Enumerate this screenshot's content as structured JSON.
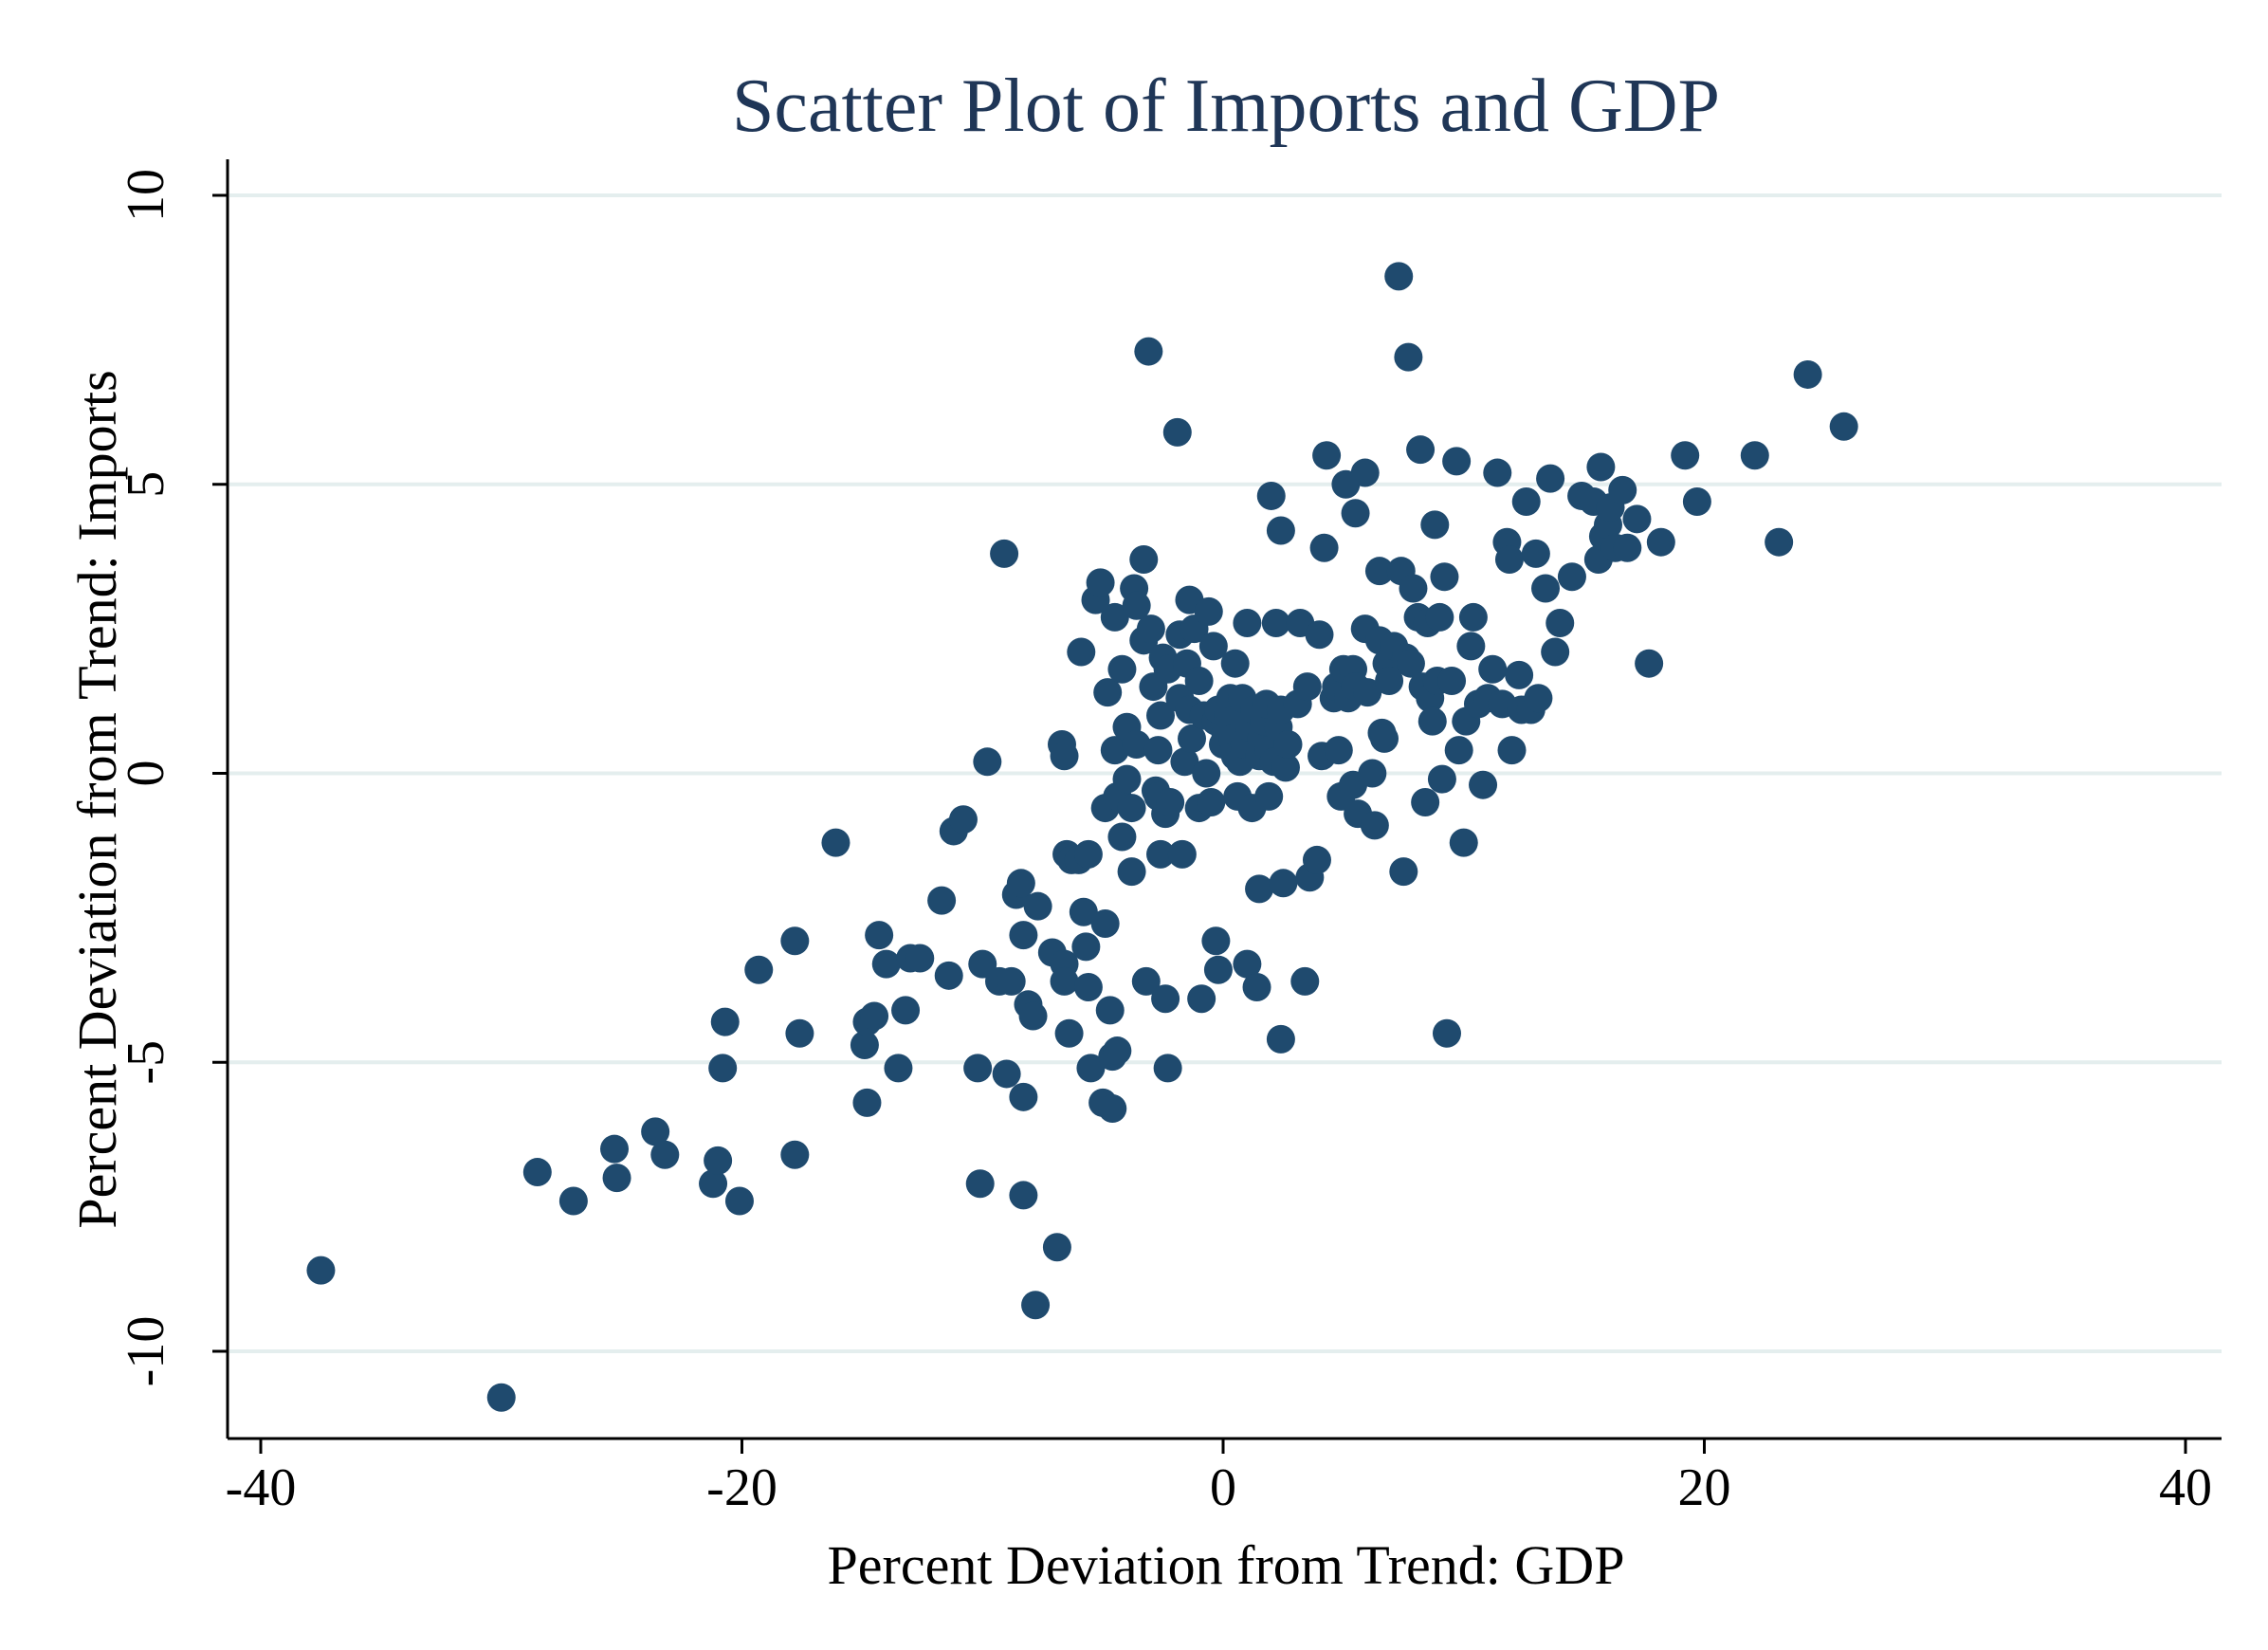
{
  "chart_data": {
    "type": "scatter",
    "title": "Scatter Plot of Imports and GDP",
    "xlabel": "Percent Deviation from Trend: GDP",
    "ylabel": "Percent Deviation from Trend: Imports",
    "xlim": [
      -40,
      40
    ],
    "ylim": [
      -10,
      10
    ],
    "x_ticks": [
      "-40",
      "-20",
      "0",
      "20",
      "40"
    ],
    "y_ticks": [
      "-10",
      "-5",
      "0",
      "5",
      "10"
    ],
    "grid": "horizontal",
    "legend": "none",
    "colors": {
      "marker": "#1f4a6e",
      "title": "#1f3657",
      "grid": "#e4eeee"
    },
    "points": [
      [
        -37.5,
        -8.6
      ],
      [
        -30.0,
        -10.8
      ],
      [
        -28.5,
        -6.9
      ],
      [
        -27.0,
        -7.4
      ],
      [
        -25.3,
        -6.5
      ],
      [
        -25.2,
        -7.0
      ],
      [
        -23.6,
        -6.2
      ],
      [
        -23.2,
        -6.6
      ],
      [
        -21.2,
        -7.1
      ],
      [
        -21.0,
        -6.7
      ],
      [
        -20.1,
        -7.4
      ],
      [
        -20.7,
        -4.3
      ],
      [
        -20.8,
        -5.1
      ],
      [
        -19.3,
        -3.4
      ],
      [
        -17.8,
        -2.9
      ],
      [
        -17.6,
        -4.5
      ],
      [
        -17.8,
        -6.6
      ],
      [
        -16.1,
        -1.2
      ],
      [
        -14.9,
        -4.7
      ],
      [
        -14.8,
        -4.3
      ],
      [
        -14.5,
        -4.2
      ],
      [
        -14.8,
        -5.7
      ],
      [
        -14.3,
        -2.8
      ],
      [
        -14.0,
        -3.3
      ],
      [
        -13.5,
        -5.1
      ],
      [
        -13.2,
        -4.1
      ],
      [
        -13.0,
        -3.2
      ],
      [
        -12.6,
        -3.2
      ],
      [
        -11.7,
        -2.2
      ],
      [
        -11.4,
        -3.5
      ],
      [
        -11.2,
        -1.0
      ],
      [
        -10.8,
        -0.8
      ],
      [
        -10.2,
        -5.1
      ],
      [
        -10.1,
        -7.1
      ],
      [
        -10.0,
        -3.3
      ],
      [
        -9.8,
        0.2
      ],
      [
        -9.3,
        -3.6
      ],
      [
        -9.1,
        3.8
      ],
      [
        -9.0,
        -5.2
      ],
      [
        -8.8,
        -3.6
      ],
      [
        -8.6,
        -2.1
      ],
      [
        -8.4,
        -1.9
      ],
      [
        -8.3,
        -2.8
      ],
      [
        -8.3,
        -5.6
      ],
      [
        -8.3,
        -7.3
      ],
      [
        -8.1,
        -4.0
      ],
      [
        -7.9,
        -4.2
      ],
      [
        -7.8,
        -9.2
      ],
      [
        -7.7,
        -2.3
      ],
      [
        -7.1,
        -3.1
      ],
      [
        -6.9,
        -8.2
      ],
      [
        -6.7,
        0.5
      ],
      [
        -6.6,
        0.3
      ],
      [
        -6.6,
        -3.3
      ],
      [
        -6.6,
        -3.6
      ],
      [
        -6.4,
        -4.5
      ],
      [
        -6.5,
        -1.4
      ],
      [
        -6.3,
        -1.5
      ],
      [
        -6.0,
        -1.5
      ],
      [
        -5.9,
        2.1
      ],
      [
        -5.8,
        -2.4
      ],
      [
        -5.7,
        -3.0
      ],
      [
        -5.6,
        -3.7
      ],
      [
        -5.6,
        -1.4
      ],
      [
        -5.5,
        -5.1
      ],
      [
        -5.3,
        3.0
      ],
      [
        -5.1,
        3.3
      ],
      [
        -5.0,
        -5.7
      ],
      [
        -4.9,
        -2.6
      ],
      [
        -4.9,
        -0.6
      ],
      [
        -4.8,
        1.4
      ],
      [
        -4.7,
        -4.1
      ],
      [
        -4.6,
        -5.8
      ],
      [
        -4.6,
        -4.9
      ],
      [
        -4.5,
        2.7
      ],
      [
        -4.5,
        0.4
      ],
      [
        -4.4,
        -4.8
      ],
      [
        -4.4,
        -0.4
      ],
      [
        -4.2,
        -1.1
      ],
      [
        -4.2,
        1.8
      ],
      [
        -4.0,
        0.8
      ],
      [
        -4.0,
        -0.1
      ],
      [
        -3.8,
        -0.6
      ],
      [
        -3.8,
        -1.7
      ],
      [
        -3.7,
        3.2
      ],
      [
        -3.6,
        2.9
      ],
      [
        -3.6,
        0.5
      ],
      [
        -3.3,
        3.7
      ],
      [
        -3.3,
        2.3
      ],
      [
        -3.2,
        -3.6
      ],
      [
        -3.1,
        7.3
      ],
      [
        -3.0,
        2.5
      ],
      [
        -2.9,
        1.5
      ],
      [
        -2.8,
        -0.3
      ],
      [
        -2.7,
        -0.4
      ],
      [
        -2.7,
        0.4
      ],
      [
        -2.6,
        -1.4
      ],
      [
        -2.6,
        1.0
      ],
      [
        -2.5,
        2.0
      ],
      [
        -2.4,
        -3.9
      ],
      [
        -2.4,
        -0.7
      ],
      [
        -2.3,
        1.8
      ],
      [
        -2.3,
        -5.1
      ],
      [
        -2.2,
        -0.5
      ],
      [
        -1.9,
        5.9
      ],
      [
        -1.8,
        2.4
      ],
      [
        -1.8,
        1.3
      ],
      [
        -1.7,
        -1.4
      ],
      [
        -1.6,
        0.2
      ],
      [
        -1.5,
        1.9
      ],
      [
        -1.4,
        1.1
      ],
      [
        -1.4,
        3.0
      ],
      [
        -1.3,
        0.6
      ],
      [
        -1.2,
        2.5
      ],
      [
        -1.0,
        -0.6
      ],
      [
        -1.0,
        1.6
      ],
      [
        -0.9,
        -3.9
      ],
      [
        -0.8,
        1.0
      ],
      [
        -0.7,
        0.0
      ],
      [
        -0.6,
        2.8
      ],
      [
        -0.5,
        -0.5
      ],
      [
        -0.4,
        2.2
      ],
      [
        -0.3,
        0.9
      ],
      [
        -0.3,
        -2.9
      ],
      [
        -0.2,
        1.1
      ],
      [
        -0.2,
        -3.4
      ],
      [
        0.0,
        0.5
      ],
      [
        0.1,
        0.7
      ],
      [
        0.2,
        1.0
      ],
      [
        0.3,
        1.3
      ],
      [
        0.3,
        0.9
      ],
      [
        0.4,
        0.6
      ],
      [
        0.5,
        0.3
      ],
      [
        0.5,
        1.9
      ],
      [
        0.6,
        -0.4
      ],
      [
        0.7,
        0.2
      ],
      [
        0.8,
        1.3
      ],
      [
        0.9,
        0.5
      ],
      [
        1.0,
        2.6
      ],
      [
        1.0,
        -3.3
      ],
      [
        1.1,
        0.8
      ],
      [
        1.2,
        -0.6
      ],
      [
        1.3,
        1.1
      ],
      [
        1.4,
        -3.7
      ],
      [
        1.5,
        0.3
      ],
      [
        1.5,
        -2.0
      ],
      [
        1.6,
        0.6
      ],
      [
        1.7,
        0.9
      ],
      [
        1.8,
        1.2
      ],
      [
        1.9,
        0.4
      ],
      [
        1.9,
        -0.4
      ],
      [
        2.0,
        4.8
      ],
      [
        2.1,
        0.2
      ],
      [
        2.2,
        2.6
      ],
      [
        2.3,
        0.8
      ],
      [
        2.4,
        1.1
      ],
      [
        2.4,
        4.2
      ],
      [
        2.4,
        -4.6
      ],
      [
        2.5,
        -1.9
      ],
      [
        2.6,
        0.1
      ],
      [
        2.7,
        0.5
      ],
      [
        3.1,
        1.2
      ],
      [
        3.2,
        2.6
      ],
      [
        3.4,
        -3.6
      ],
      [
        3.5,
        1.5
      ],
      [
        3.6,
        -1.8
      ],
      [
        3.9,
        -1.5
      ],
      [
        4.0,
        2.4
      ],
      [
        4.1,
        0.3
      ],
      [
        4.2,
        3.9
      ],
      [
        4.3,
        5.5
      ],
      [
        4.6,
        1.3
      ],
      [
        4.7,
        1.5
      ],
      [
        4.8,
        0.4
      ],
      [
        4.9,
        -0.4
      ],
      [
        5.0,
        1.8
      ],
      [
        5.1,
        5.0
      ],
      [
        5.2,
        1.3
      ],
      [
        5.4,
        1.8
      ],
      [
        5.4,
        -0.2
      ],
      [
        5.5,
        4.5
      ],
      [
        5.5,
        1.5
      ],
      [
        5.6,
        -0.7
      ],
      [
        5.9,
        5.2
      ],
      [
        5.9,
        2.5
      ],
      [
        6.0,
        1.4
      ],
      [
        6.2,
        0.0
      ],
      [
        6.3,
        -0.9
      ],
      [
        6.5,
        3.5
      ],
      [
        6.5,
        2.3
      ],
      [
        6.6,
        0.7
      ],
      [
        6.7,
        0.6
      ],
      [
        6.8,
        1.9
      ],
      [
        6.9,
        1.6
      ],
      [
        7.1,
        2.2
      ],
      [
        7.3,
        8.6
      ],
      [
        7.4,
        3.5
      ],
      [
        7.5,
        -1.7
      ],
      [
        7.6,
        2.0
      ],
      [
        7.7,
        7.2
      ],
      [
        7.8,
        1.9
      ],
      [
        7.9,
        3.2
      ],
      [
        8.1,
        2.7
      ],
      [
        8.2,
        5.6
      ],
      [
        8.3,
        1.5
      ],
      [
        8.4,
        -0.5
      ],
      [
        8.5,
        2.6
      ],
      [
        8.6,
        1.3
      ],
      [
        8.7,
        0.9
      ],
      [
        8.8,
        4.3
      ],
      [
        8.9,
        1.6
      ],
      [
        9.0,
        2.7
      ],
      [
        9.1,
        -0.1
      ],
      [
        9.2,
        3.4
      ],
      [
        9.3,
        -4.5
      ],
      [
        9.5,
        1.6
      ],
      [
        9.7,
        5.4
      ],
      [
        9.8,
        0.4
      ],
      [
        10.0,
        -1.2
      ],
      [
        10.1,
        0.9
      ],
      [
        10.3,
        2.2
      ],
      [
        10.4,
        2.7
      ],
      [
        10.6,
        1.2
      ],
      [
        10.8,
        -0.2
      ],
      [
        11.0,
        1.3
      ],
      [
        11.2,
        1.8
      ],
      [
        11.4,
        5.2
      ],
      [
        11.6,
        1.2
      ],
      [
        11.8,
        4.0
      ],
      [
        11.9,
        3.7
      ],
      [
        12.0,
        0.4
      ],
      [
        12.3,
        1.7
      ],
      [
        12.4,
        1.1
      ],
      [
        12.6,
        4.7
      ],
      [
        12.8,
        1.1
      ],
      [
        13.0,
        3.8
      ],
      [
        13.1,
        1.3
      ],
      [
        13.4,
        3.2
      ],
      [
        13.6,
        5.1
      ],
      [
        13.8,
        2.1
      ],
      [
        14.0,
        2.6
      ],
      [
        14.5,
        3.4
      ],
      [
        14.9,
        4.8
      ],
      [
        15.4,
        4.7
      ],
      [
        15.6,
        3.7
      ],
      [
        15.7,
        5.3
      ],
      [
        15.8,
        4.1
      ],
      [
        16.0,
        4.3
      ],
      [
        16.1,
        4.6
      ],
      [
        16.3,
        3.9
      ],
      [
        16.6,
        4.9
      ],
      [
        16.8,
        3.9
      ],
      [
        17.2,
        4.4
      ],
      [
        17.7,
        1.9
      ],
      [
        18.2,
        4.0
      ],
      [
        19.2,
        5.5
      ],
      [
        19.7,
        4.7
      ],
      [
        22.1,
        5.5
      ],
      [
        23.1,
        4.0
      ],
      [
        24.3,
        6.9
      ],
      [
        25.8,
        6.0
      ]
    ]
  }
}
